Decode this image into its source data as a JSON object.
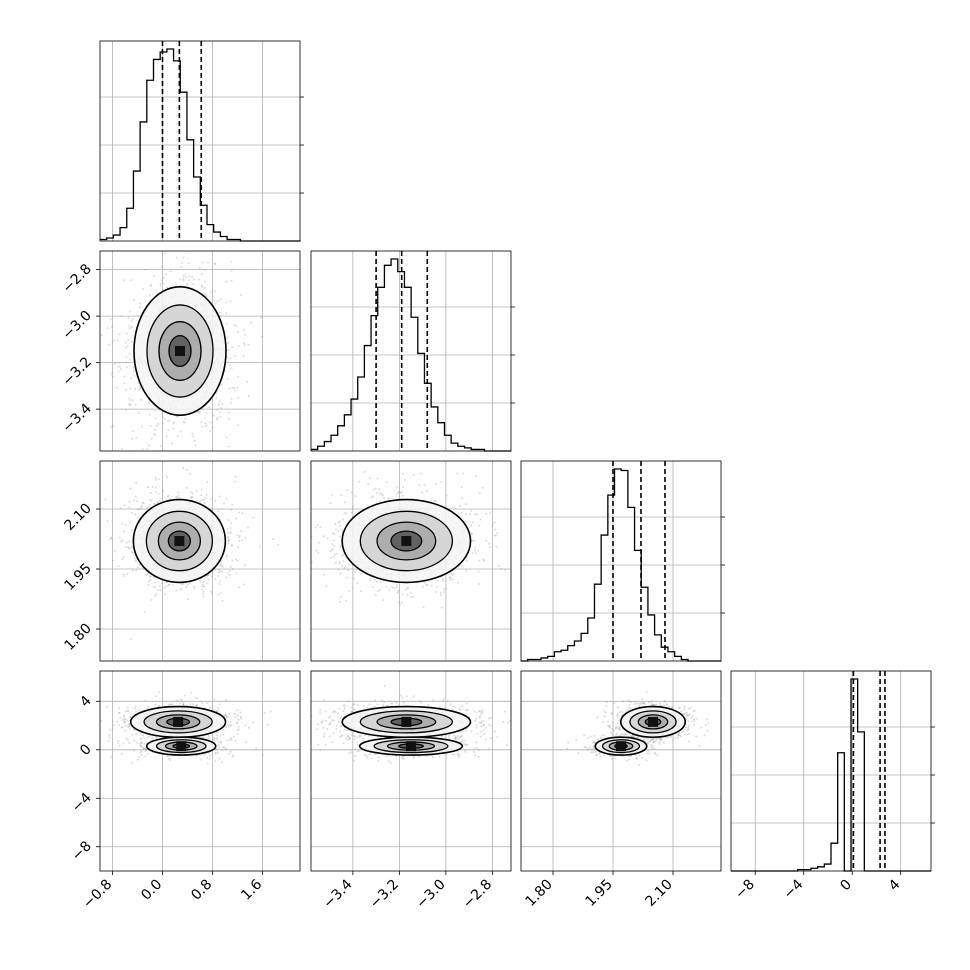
{
  "chart_data": {
    "type": "corner",
    "title": "",
    "colors": {
      "hist": "#000000",
      "grid": "#b0b0b0",
      "frame": "#000000",
      "points": "#9a9a9a"
    },
    "grid": true,
    "quantile_lines": "dashed",
    "params": [
      {
        "range": [
          -1.0,
          2.2
        ],
        "ticks": [
          -0.8,
          0.0,
          0.8,
          1.6
        ],
        "tick_labels": [
          "−0.8",
          "0.0",
          "0.8",
          "1.6"
        ],
        "quantiles": [
          0.0,
          0.27,
          0.62
        ],
        "hist": {
          "edges_start": -1.0,
          "edges_step": 0.107,
          "counts": [
            1,
            2,
            4,
            9,
            22,
            47,
            80,
            108,
            122,
            127,
            129,
            121,
            100,
            68,
            43,
            24,
            11,
            6,
            3,
            1,
            1,
            0,
            0,
            0,
            0,
            0,
            0,
            0,
            0,
            0
          ]
        }
      },
      {
        "range": [
          -3.58,
          -2.72
        ],
        "ticks": [
          -3.4,
          -3.2,
          -3.0,
          -2.8
        ],
        "tick_labels": [
          "−3.4",
          "−3.2",
          "−3.0",
          "−2.8"
        ],
        "quantiles": [
          -3.3,
          -3.19,
          -3.08
        ],
        "hist": {
          "edges_start": -3.58,
          "edges_step": 0.0287,
          "counts": [
            1,
            3,
            6,
            10,
            16,
            23,
            33,
            47,
            67,
            86,
            104,
            118,
            122,
            114,
            104,
            85,
            62,
            43,
            28,
            18,
            10,
            5,
            3,
            2,
            1,
            1,
            0,
            0,
            0,
            0
          ]
        }
      },
      {
        "range": [
          1.72,
          2.22
        ],
        "ticks": [
          1.8,
          1.95,
          2.1
        ],
        "tick_labels": [
          "1.80",
          "1.95",
          "2.10"
        ],
        "quantiles": [
          1.95,
          2.02,
          2.08
        ],
        "hist": {
          "edges_start": 1.72,
          "edges_step": 0.0167,
          "counts": [
            0,
            1,
            1,
            2,
            3,
            6,
            7,
            10,
            13,
            18,
            28,
            50,
            82,
            108,
            125,
            124,
            100,
            72,
            48,
            30,
            17,
            9,
            6,
            3,
            1,
            0,
            0,
            0,
            0,
            0
          ]
        }
      },
      {
        "range": [
          -10.0,
          6.5
        ],
        "ticks": [
          -8,
          -4,
          0,
          4
        ],
        "tick_labels": [
          "−8",
          "−4",
          "0",
          "4"
        ],
        "quantiles": [
          0.1,
          2.3,
          2.7
        ],
        "hist": {
          "edges_start": -10.0,
          "edges_step": 0.55,
          "counts": [
            0,
            0,
            0,
            0,
            0,
            0,
            0,
            0,
            0,
            0,
            1,
            1,
            2,
            3,
            5,
            20,
            85,
            0,
            138,
            100,
            0,
            0,
            0,
            0,
            0,
            0,
            0,
            0,
            0,
            0
          ]
        }
      }
    ],
    "pairs": [
      {
        "row": 1,
        "col": 0,
        "modes": [
          {
            "cx": 0.28,
            "cy": -3.15,
            "sx": 0.32,
            "sy": 0.12,
            "w": 1
          }
        ]
      },
      {
        "row": 2,
        "col": 0,
        "modes": [
          {
            "cx": 0.27,
            "cy": 2.02,
            "sx": 0.32,
            "sy": 0.045,
            "w": 1
          }
        ]
      },
      {
        "row": 2,
        "col": 1,
        "modes": [
          {
            "cx": -3.17,
            "cy": 2.02,
            "sx": 0.12,
            "sy": 0.045,
            "w": 1
          }
        ]
      },
      {
        "row": 3,
        "col": 0,
        "modes": [
          {
            "cx": 0.25,
            "cy": 2.3,
            "sx": 0.33,
            "sy": 0.55,
            "w": 0.72
          },
          {
            "cx": 0.3,
            "cy": 0.3,
            "sx": 0.3,
            "sy": 0.4,
            "w": 0.28
          }
        ]
      },
      {
        "row": 3,
        "col": 1,
        "modes": [
          {
            "cx": -3.17,
            "cy": 2.3,
            "sx": 0.12,
            "sy": 0.55,
            "w": 0.72
          },
          {
            "cx": -3.15,
            "cy": 0.3,
            "sx": 0.12,
            "sy": 0.4,
            "w": 0.28
          }
        ]
      },
      {
        "row": 3,
        "col": 2,
        "modes": [
          {
            "cx": 2.05,
            "cy": 2.3,
            "sx": 0.035,
            "sy": 0.55,
            "w": 0.72
          },
          {
            "cx": 1.97,
            "cy": 0.3,
            "sx": 0.035,
            "sy": 0.4,
            "w": 0.28
          }
        ]
      }
    ]
  }
}
